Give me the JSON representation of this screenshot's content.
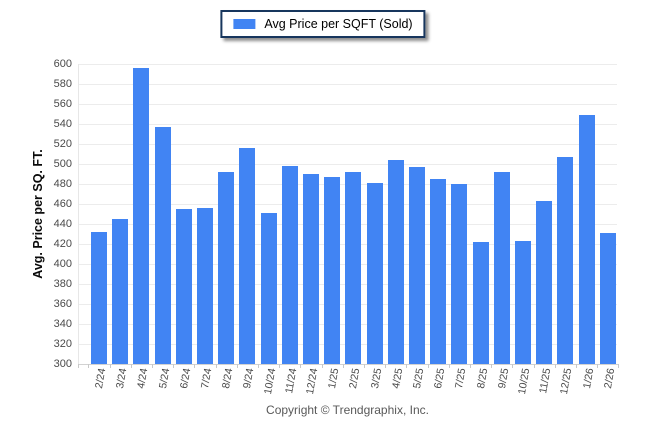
{
  "legend": {
    "series_label": "Avg Price per SQFT (Sold)",
    "swatch_icon": "blue-bar-swatch-icon"
  },
  "footer": {
    "copyright": "Copyright © Trendgraphix, Inc."
  },
  "colors": {
    "bar": "#4184f3",
    "legend_border": "#17365d",
    "gridline": "#ececec",
    "baseline": "#d2d2d2",
    "tick": "#c9c9c9",
    "axis_text": "#4a4a4a",
    "footer_text": "#595959"
  },
  "chart_data": {
    "type": "bar",
    "title": "",
    "series_name": "Avg Price per SQFT (Sold)",
    "categories": [
      "2/24",
      "3/24",
      "4/24",
      "5/24",
      "6/24",
      "7/24",
      "8/24",
      "9/24",
      "10/24",
      "11/24",
      "12/24",
      "1/25",
      "2/25",
      "3/25",
      "4/25",
      "5/25",
      "6/25",
      "7/25",
      "8/25",
      "9/25",
      "10/25",
      "11/25",
      "12/25",
      "1/26",
      "2/26"
    ],
    "values": [
      432,
      445,
      596,
      537,
      455,
      456,
      492,
      516,
      451,
      498,
      490,
      487,
      492,
      481,
      504,
      497,
      485,
      480,
      422,
      492,
      423,
      463,
      507,
      549,
      431
    ],
    "xlabel": "",
    "ylabel": "Avg. Price per SQ. FT.",
    "ylim": [
      300,
      600
    ],
    "ytick_step": 20,
    "grid": true,
    "legend_position": "top-center",
    "bar_color": "#4184f3"
  }
}
